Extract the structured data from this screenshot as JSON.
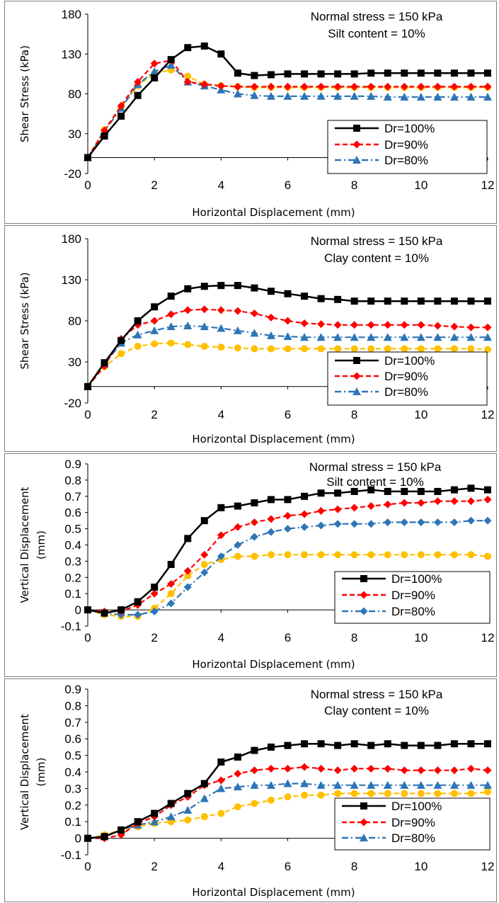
{
  "colors": {
    "dr100": "#000000",
    "dr90": "#ff0000",
    "dr80": "#2e75b6",
    "extra": "#ffc000",
    "axis": "#000000",
    "border": "#7f7f7f"
  },
  "chart_data": [
    {
      "type": "line",
      "xlabel": "Horizontal Displacement (mm)",
      "ylabel": "Shear Stress (kPa)",
      "xlim": [
        0,
        12
      ],
      "ylim": [
        -20,
        180
      ],
      "xticks": [
        "0",
        "2",
        "4",
        "6",
        "8",
        "10",
        "12"
      ],
      "yticks": [
        "-20",
        "30",
        "80",
        "130",
        "180"
      ],
      "annotation": [
        "Normal stress = 150 kPa",
        "Silt content = 10%"
      ],
      "legend": [
        "Dr=100%",
        "Dr=90%",
        "Dr=80%"
      ],
      "series": [
        {
          "name": "Dr=100%",
          "marker": "square",
          "dash": "solid",
          "color": "#000000",
          "x": [
            0,
            0.5,
            1,
            1.5,
            2,
            2.5,
            3,
            3.5,
            4,
            4.5,
            5,
            5.5,
            6,
            6.5,
            7,
            7.5,
            8,
            8.5,
            9,
            9.5,
            10,
            10.5,
            11,
            11.5,
            12
          ],
          "y": [
            0,
            27,
            52,
            78,
            100,
            123,
            138,
            140,
            130,
            106,
            103,
            104,
            105,
            105,
            105,
            105,
            105,
            106,
            106,
            106,
            106,
            106,
            106,
            106,
            106
          ]
        },
        {
          "name": "Dr=90%",
          "marker": "diamond",
          "dash": "dashed",
          "color": "#ff0000",
          "x": [
            0,
            0.5,
            1,
            1.5,
            2,
            2.5,
            3,
            3.5,
            4,
            4.5,
            5,
            5.5,
            6,
            6.5,
            7,
            7.5,
            8,
            8.5,
            9,
            9.5,
            10,
            10.5,
            11,
            11.5,
            12
          ],
          "y": [
            0,
            34,
            65,
            95,
            118,
            122,
            95,
            92,
            90,
            89,
            89,
            89,
            89,
            89,
            89,
            89,
            89,
            89,
            89,
            89,
            89,
            89,
            89,
            89,
            89
          ]
        },
        {
          "name": "Dr=80%",
          "marker": "triangle",
          "dash": "dashdot",
          "color": "#2e75b6",
          "x": [
            0,
            0.5,
            1,
            1.5,
            2,
            2.5,
            3,
            3.5,
            4,
            4.5,
            5,
            5.5,
            6,
            6.5,
            7,
            7.5,
            8,
            8.5,
            9,
            9.5,
            10,
            10.5,
            11,
            11.5,
            12
          ],
          "y": [
            0,
            33,
            62,
            92,
            108,
            116,
            95,
            90,
            85,
            80,
            78,
            77,
            77,
            77,
            77,
            77,
            77,
            77,
            76,
            76,
            76,
            76,
            76,
            76,
            76
          ]
        },
        {
          "name": "",
          "marker": "circle",
          "dash": "dashed",
          "color": "#ffc000",
          "x": [
            0,
            0.5,
            1,
            1.5,
            2,
            2.5,
            3,
            3.5,
            4,
            4.5,
            5,
            5.5,
            6,
            6.5,
            7,
            7.5,
            8,
            8.5,
            9,
            9.5,
            10,
            10.5,
            11,
            11.5,
            12
          ],
          "y": [
            0,
            35,
            63,
            90,
            106,
            110,
            102,
            92,
            90,
            89,
            88,
            88,
            88,
            88,
            88,
            88,
            88,
            88,
            88,
            88,
            88,
            88,
            88,
            88,
            88
          ]
        }
      ]
    },
    {
      "type": "line",
      "xlabel": "Horizontal Displacement (mm)",
      "ylabel": "Shear Stress (kPa)",
      "xlim": [
        0,
        12
      ],
      "ylim": [
        -20,
        180
      ],
      "xticks": [
        "0",
        "2",
        "4",
        "6",
        "8",
        "10",
        "12"
      ],
      "yticks": [
        "-20",
        "30",
        "80",
        "130",
        "180"
      ],
      "annotation": [
        "Normal stress = 150 kPa",
        "Clay content = 10%"
      ],
      "legend": [
        "Dr=100%",
        "Dr=90%",
        "Dr=80%"
      ],
      "series": [
        {
          "name": "Dr=100%",
          "marker": "square",
          "dash": "solid",
          "color": "#000000",
          "x": [
            0,
            0.5,
            1,
            1.5,
            2,
            2.5,
            3,
            3.5,
            4,
            4.5,
            5,
            5.5,
            6,
            6.5,
            7,
            7.5,
            8,
            8.5,
            9,
            9.5,
            10,
            10.5,
            11,
            11.5,
            12
          ],
          "y": [
            0,
            29,
            56,
            80,
            97,
            110,
            119,
            122,
            123,
            123,
            120,
            116,
            113,
            110,
            107,
            106,
            104,
            104,
            104,
            104,
            104,
            104,
            104,
            104,
            104
          ]
        },
        {
          "name": "Dr=90%",
          "marker": "diamond",
          "dash": "dashed",
          "color": "#ff0000",
          "x": [
            0,
            0.5,
            1,
            1.5,
            2,
            2.5,
            3,
            3.5,
            4,
            4.5,
            5,
            5.5,
            6,
            6.5,
            7,
            7.5,
            8,
            8.5,
            9,
            9.5,
            10,
            10.5,
            11,
            11.5,
            12
          ],
          "y": [
            0,
            25,
            58,
            75,
            80,
            88,
            93,
            94,
            93,
            92,
            89,
            84,
            80,
            77,
            76,
            75,
            75,
            75,
            75,
            75,
            75,
            74,
            73,
            72,
            72
          ]
        },
        {
          "name": "Dr=80%",
          "marker": "triangle",
          "dash": "dashdot",
          "color": "#2e75b6",
          "x": [
            0,
            0.5,
            1,
            1.5,
            2,
            2.5,
            3,
            3.5,
            4,
            4.5,
            5,
            5.5,
            6,
            6.5,
            7,
            7.5,
            8,
            8.5,
            9,
            9.5,
            10,
            10.5,
            11,
            11.5,
            12
          ],
          "y": [
            0,
            27,
            53,
            63,
            68,
            73,
            74,
            73,
            71,
            68,
            65,
            62,
            61,
            60,
            60,
            60,
            60,
            60,
            60,
            60,
            60,
            60,
            60,
            60,
            60
          ]
        },
        {
          "name": "",
          "marker": "circle",
          "dash": "dashed",
          "color": "#ffc000",
          "x": [
            0,
            0.5,
            1,
            1.5,
            2,
            2.5,
            3,
            3.5,
            4,
            4.5,
            5,
            5.5,
            6,
            6.5,
            7,
            7.5,
            8,
            8.5,
            9,
            9.5,
            10,
            10.5,
            11,
            11.5,
            12
          ],
          "y": [
            0,
            24,
            40,
            49,
            52,
            53,
            51,
            49,
            48,
            47,
            46,
            46,
            46,
            46,
            46,
            46,
            46,
            46,
            46,
            46,
            46,
            46,
            46,
            46,
            45
          ]
        }
      ]
    },
    {
      "type": "line",
      "xlabel": "Horizontal Displacement (mm)",
      "ylabel": [
        "Vertical Displacement",
        "(mm)"
      ],
      "xlim": [
        0,
        12
      ],
      "ylim": [
        -0.1,
        0.9
      ],
      "xticks": [
        "0",
        "2",
        "4",
        "6",
        "8",
        "10",
        "12"
      ],
      "yticks": [
        "-0.1",
        "0",
        "0.1",
        "0.2",
        "0.3",
        "0.4",
        "0.5",
        "0.6",
        "0.7",
        "0.8",
        "0.9"
      ],
      "annotation": [
        "Normal stress = 150 kPa",
        "Silt content = 10%"
      ],
      "legend": [
        "Dr=100%",
        "Dr=90%",
        "Dr=80%"
      ],
      "series": [
        {
          "name": "Dr=100%",
          "marker": "square",
          "dash": "solid",
          "color": "#000000",
          "x": [
            0,
            0.5,
            1,
            1.5,
            2,
            2.5,
            3,
            3.5,
            4,
            4.5,
            5,
            5.5,
            6,
            6.5,
            7,
            7.5,
            8,
            8.5,
            9,
            9.5,
            10,
            10.5,
            11,
            11.5,
            12
          ],
          "y": [
            0,
            -0.02,
            0,
            0.05,
            0.14,
            0.28,
            0.44,
            0.55,
            0.63,
            0.64,
            0.66,
            0.68,
            0.68,
            0.7,
            0.72,
            0.72,
            0.73,
            0.74,
            0.73,
            0.73,
            0.73,
            0.73,
            0.74,
            0.75,
            0.74
          ]
        },
        {
          "name": "Dr=90%",
          "marker": "diamond",
          "dash": "dashed",
          "color": "#ff0000",
          "x": [
            0,
            0.5,
            1,
            1.5,
            2,
            2.5,
            3,
            3.5,
            4,
            4.5,
            5,
            5.5,
            6,
            6.5,
            7,
            7.5,
            8,
            8.5,
            9,
            9.5,
            10,
            10.5,
            11,
            11.5,
            12
          ],
          "y": [
            0,
            -0.01,
            -0.01,
            0.03,
            0.1,
            0.16,
            0.24,
            0.34,
            0.46,
            0.51,
            0.54,
            0.56,
            0.58,
            0.59,
            0.61,
            0.62,
            0.63,
            0.64,
            0.65,
            0.66,
            0.66,
            0.67,
            0.67,
            0.67,
            0.68
          ]
        },
        {
          "name": "Dr=80%",
          "marker": "diamond",
          "dash": "dashdot",
          "color": "#2e75b6",
          "x": [
            0,
            0.5,
            1,
            1.5,
            2,
            2.5,
            3,
            3.5,
            4,
            4.5,
            5,
            5.5,
            6,
            6.5,
            7,
            7.5,
            8,
            8.5,
            9,
            9.5,
            10,
            10.5,
            11,
            11.5,
            12
          ],
          "y": [
            0,
            -0.02,
            -0.03,
            -0.03,
            -0.01,
            0.04,
            0.14,
            0.23,
            0.33,
            0.4,
            0.45,
            0.48,
            0.5,
            0.51,
            0.52,
            0.53,
            0.53,
            0.53,
            0.54,
            0.54,
            0.54,
            0.54,
            0.54,
            0.55,
            0.55
          ]
        },
        {
          "name": "",
          "marker": "circle",
          "dash": "dashed",
          "color": "#ffc000",
          "x": [
            0,
            0.5,
            1,
            1.5,
            2,
            2.5,
            3,
            3.5,
            4,
            4.5,
            5,
            5.5,
            6,
            6.5,
            7,
            7.5,
            8,
            8.5,
            9,
            9.5,
            10,
            10.5,
            11,
            11.5,
            12
          ],
          "y": [
            0,
            -0.03,
            -0.04,
            -0.04,
            0.01,
            0.1,
            0.21,
            0.28,
            0.31,
            0.33,
            0.33,
            0.34,
            0.34,
            0.34,
            0.34,
            0.34,
            0.34,
            0.34,
            0.34,
            0.34,
            0.34,
            0.34,
            0.34,
            0.34,
            0.33
          ]
        }
      ]
    },
    {
      "type": "line",
      "xlabel": "Horizontal Displacement (mm)",
      "ylabel": [
        "Vertical Displacement",
        "(mm)"
      ],
      "xlim": [
        0,
        12
      ],
      "ylim": [
        -0.1,
        0.9
      ],
      "xticks": [
        "0",
        "2",
        "4",
        "6",
        "8",
        "10",
        "12"
      ],
      "yticks": [
        "-0.1",
        "0",
        "0.1",
        "0.2",
        "0.3",
        "0.4",
        "0.5",
        "0.6",
        "0.7",
        "0.8",
        "0.9"
      ],
      "annotation": [
        "Normal stress = 150 kPa",
        "Clay content = 10%"
      ],
      "legend": [
        "Dr=100%",
        "Dr=90%",
        "Dr=80%"
      ],
      "series": [
        {
          "name": "Dr=100%",
          "marker": "square",
          "dash": "solid",
          "color": "#000000",
          "x": [
            0,
            0.5,
            1,
            1.5,
            2,
            2.5,
            3,
            3.5,
            4,
            4.5,
            5,
            5.5,
            6,
            6.5,
            7,
            7.5,
            8,
            8.5,
            9,
            9.5,
            10,
            10.5,
            11,
            11.5,
            12
          ],
          "y": [
            0,
            0.01,
            0.05,
            0.1,
            0.15,
            0.21,
            0.27,
            0.33,
            0.46,
            0.49,
            0.53,
            0.55,
            0.56,
            0.57,
            0.57,
            0.56,
            0.57,
            0.56,
            0.57,
            0.56,
            0.56,
            0.56,
            0.57,
            0.57,
            0.57
          ]
        },
        {
          "name": "Dr=90%",
          "marker": "diamond",
          "dash": "dashed",
          "color": "#ff0000",
          "x": [
            0,
            0.5,
            1,
            1.5,
            2,
            2.5,
            3,
            3.5,
            4,
            4.5,
            5,
            5.5,
            6,
            6.5,
            7,
            7.5,
            8,
            8.5,
            9,
            9.5,
            10,
            10.5,
            11,
            11.5,
            12
          ],
          "y": [
            0,
            0.0,
            0.02,
            0.09,
            0.13,
            0.2,
            0.25,
            0.32,
            0.35,
            0.39,
            0.41,
            0.42,
            0.42,
            0.43,
            0.42,
            0.41,
            0.42,
            0.42,
            0.42,
            0.41,
            0.41,
            0.41,
            0.41,
            0.42,
            0.41
          ]
        },
        {
          "name": "Dr=80%",
          "marker": "triangle",
          "dash": "dashdot",
          "color": "#2e75b6",
          "x": [
            0,
            0.5,
            1,
            1.5,
            2,
            2.5,
            3,
            3.5,
            4,
            4.5,
            5,
            5.5,
            6,
            6.5,
            7,
            7.5,
            8,
            8.5,
            9,
            9.5,
            10,
            10.5,
            11,
            11.5,
            12
          ],
          "y": [
            0,
            0.01,
            0.05,
            0.08,
            0.1,
            0.13,
            0.17,
            0.24,
            0.3,
            0.31,
            0.32,
            0.32,
            0.33,
            0.33,
            0.32,
            0.32,
            0.32,
            0.32,
            0.32,
            0.32,
            0.32,
            0.32,
            0.32,
            0.32,
            0.32
          ]
        },
        {
          "name": "",
          "marker": "circle",
          "dash": "dashed",
          "color": "#ffc000",
          "x": [
            0,
            0.5,
            1,
            1.5,
            2,
            2.5,
            3,
            3.5,
            4,
            4.5,
            5,
            5.5,
            6,
            6.5,
            7,
            7.5,
            8,
            8.5,
            9,
            9.5,
            10,
            10.5,
            11,
            11.5,
            12
          ],
          "y": [
            0,
            0.02,
            0.05,
            0.07,
            0.09,
            0.1,
            0.11,
            0.13,
            0.15,
            0.19,
            0.21,
            0.23,
            0.25,
            0.26,
            0.26,
            0.27,
            0.27,
            0.27,
            0.27,
            0.27,
            0.27,
            0.27,
            0.27,
            0.27,
            0.28
          ]
        }
      ]
    }
  ]
}
